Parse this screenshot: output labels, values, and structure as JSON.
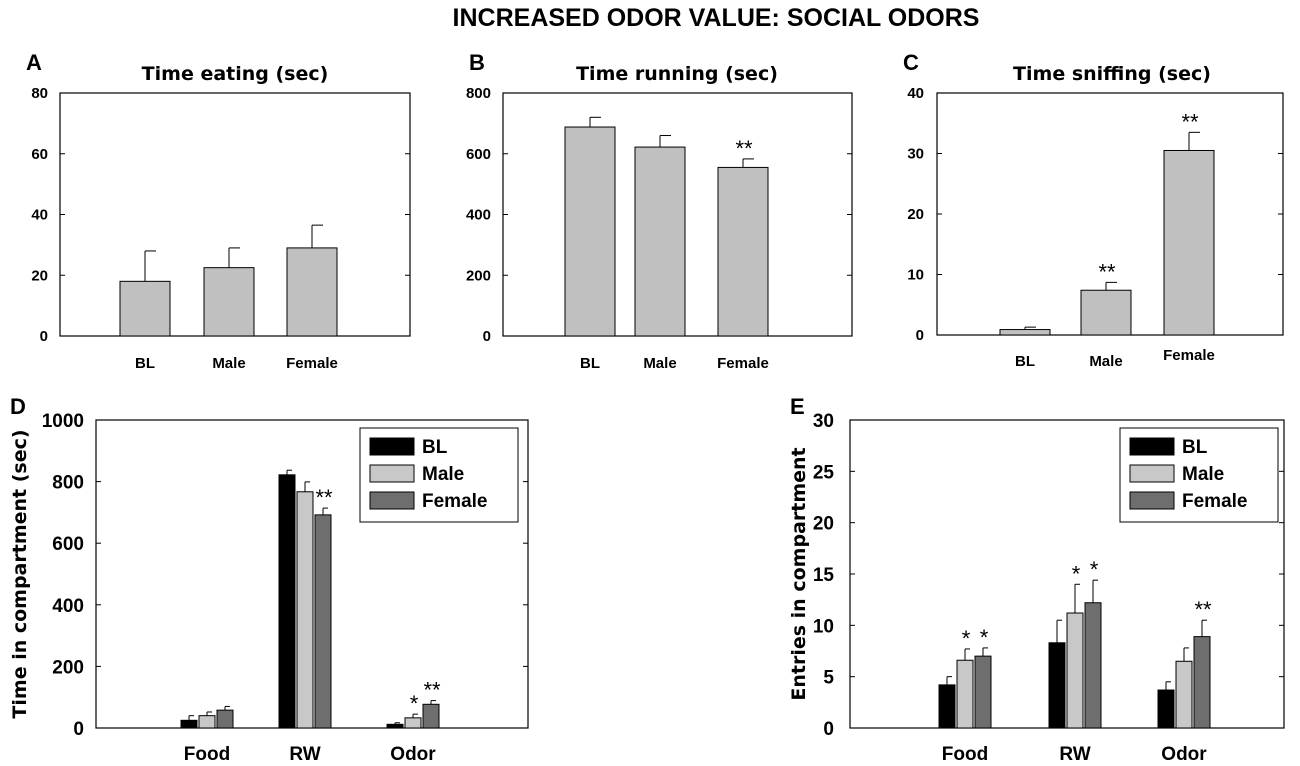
{
  "figure_title": "INCREASED ODOR VALUE: SOCIAL ODORS",
  "colors": {
    "bl": "#000000",
    "male": "#c8c8c8",
    "female": "#6e6e6e",
    "single": "#c0c0c0"
  },
  "chart_data": [
    {
      "id": "A",
      "type": "bar",
      "title": "Time  eating (sec)",
      "categories": [
        "BL",
        "Male",
        "Female"
      ],
      "values": [
        18,
        22.5,
        29
      ],
      "errors": [
        10,
        6.5,
        7.5
      ],
      "sig": [
        "",
        "",
        ""
      ],
      "ylim": [
        0,
        80
      ],
      "yticks": [
        0,
        20,
        40,
        60,
        80
      ],
      "xlabel": "",
      "ylabel": ""
    },
    {
      "id": "B",
      "type": "bar",
      "title": "Time running (sec)",
      "categories": [
        "BL",
        "Male",
        "Female"
      ],
      "values": [
        688,
        622,
        555
      ],
      "errors": [
        32,
        38,
        28
      ],
      "sig": [
        "",
        "",
        "**"
      ],
      "ylim": [
        0,
        800
      ],
      "yticks": [
        0,
        200,
        400,
        600,
        800
      ],
      "xlabel": "",
      "ylabel": ""
    },
    {
      "id": "C",
      "type": "bar",
      "title": "Time sniffing (sec)",
      "categories": [
        "BL",
        "Male",
        "Female"
      ],
      "values": [
        0.9,
        7.4,
        30.5
      ],
      "errors": [
        0.4,
        1.3,
        3.0
      ],
      "sig": [
        "",
        "**",
        "**"
      ],
      "ylim": [
        0,
        40
      ],
      "yticks": [
        0,
        10,
        20,
        30,
        40
      ],
      "xlabel": "",
      "ylabel": ""
    },
    {
      "id": "D",
      "type": "bar",
      "title": "",
      "ylabel": "Time in compartment (sec)",
      "xlabel": "",
      "categories": [
        "Food",
        "RW",
        "Odor"
      ],
      "ylim": [
        0,
        1000
      ],
      "yticks": [
        0,
        200,
        400,
        600,
        800,
        1000
      ],
      "legend": "top-right",
      "series": [
        {
          "name": "BL",
          "values": [
            25,
            822,
            12
          ],
          "errors": [
            15,
            15,
            5
          ],
          "sig": [
            "",
            "",
            ""
          ]
        },
        {
          "name": "Male",
          "values": [
            40,
            767,
            33
          ],
          "errors": [
            12,
            32,
            12
          ],
          "sig": [
            "",
            "",
            "*"
          ]
        },
        {
          "name": "Female",
          "values": [
            58,
            692,
            77
          ],
          "errors": [
            12,
            22,
            12
          ],
          "sig": [
            "",
            "**",
            "**"
          ]
        }
      ]
    },
    {
      "id": "E",
      "type": "bar",
      "title": "",
      "ylabel": "Entries in compartment",
      "xlabel": "",
      "categories": [
        "Food",
        "RW",
        "Odor"
      ],
      "ylim": [
        0,
        30
      ],
      "yticks": [
        0,
        5,
        10,
        15,
        20,
        25,
        30
      ],
      "legend": "top-right",
      "series": [
        {
          "name": "BL",
          "values": [
            4.2,
            8.3,
            3.7
          ],
          "errors": [
            0.8,
            2.2,
            0.8
          ],
          "sig": [
            "",
            "",
            ""
          ]
        },
        {
          "name": "Male",
          "values": [
            6.6,
            11.2,
            6.5
          ],
          "errors": [
            1.1,
            2.8,
            1.3
          ],
          "sig": [
            "*",
            "*",
            ""
          ]
        },
        {
          "name": "Female",
          "values": [
            7.0,
            12.2,
            8.9
          ],
          "errors": [
            0.8,
            2.2,
            1.6
          ],
          "sig": [
            "*",
            "*",
            "**"
          ]
        }
      ]
    }
  ]
}
